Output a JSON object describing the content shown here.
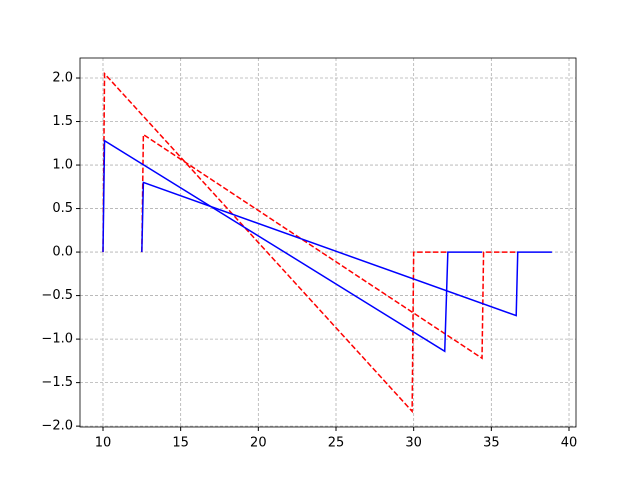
{
  "chart_data": {
    "type": "line",
    "series": [
      {
        "color": "#ff0000",
        "dash": true,
        "x": [
          10,
          10.1,
          29.9,
          30,
          32.2
        ],
        "values": [
          0,
          2.05,
          -1.83,
          0,
          0
        ]
      },
      {
        "color": "#ff0000",
        "dash": true,
        "x": [
          12.5,
          12.6,
          34.4,
          34.5,
          36.7
        ],
        "values": [
          0,
          1.35,
          -1.22,
          0,
          0
        ]
      },
      {
        "color": "#0000ff",
        "dash": false,
        "x": [
          10,
          10.1,
          32,
          32.2,
          34.4
        ],
        "values": [
          0,
          1.28,
          -1.14,
          0,
          0
        ]
      },
      {
        "color": "#0000ff",
        "dash": false,
        "x": [
          12.5,
          12.6,
          36.6,
          36.7,
          38.9
        ],
        "values": [
          0,
          0.8,
          -0.73,
          0,
          0
        ]
      }
    ],
    "xlim": [
      8.52,
      40.45
    ],
    "ylim": [
      -2.01,
      2.23
    ],
    "xticks": [
      10,
      15,
      20,
      25,
      30,
      35,
      40
    ],
    "yticks": [
      {
        "value": -2,
        "label": "−2.0"
      },
      {
        "value": -1.5,
        "label": "−1.5"
      },
      {
        "value": -1,
        "label": "−1.0"
      },
      {
        "value": -0.5,
        "label": "−0.5"
      },
      {
        "value": 0,
        "label": "0.0"
      },
      {
        "value": 0.5,
        "label": "0.5"
      },
      {
        "value": 1,
        "label": "1.0"
      },
      {
        "value": 1.5,
        "label": "1.5"
      },
      {
        "value": 2,
        "label": "2.0"
      }
    ],
    "grid": true
  }
}
